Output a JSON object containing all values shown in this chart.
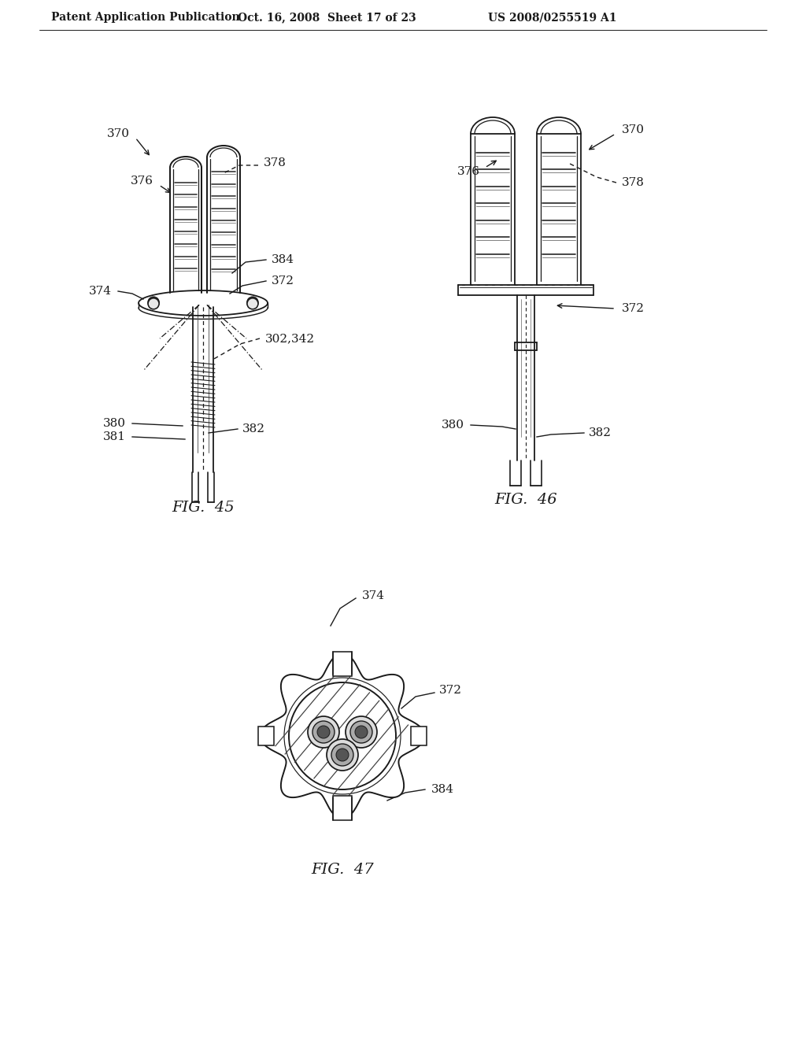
{
  "background_color": "#ffffff",
  "header_left": "Patent Application Publication",
  "header_center": "Oct. 16, 2008  Sheet 17 of 23",
  "header_right": "US 2008/0255519 A1",
  "fig45_caption": "FIG.  45",
  "fig46_caption": "FIG.  46",
  "fig47_caption": "FIG.  47",
  "line_color": "#1a1a1a",
  "text_color": "#1a1a1a"
}
